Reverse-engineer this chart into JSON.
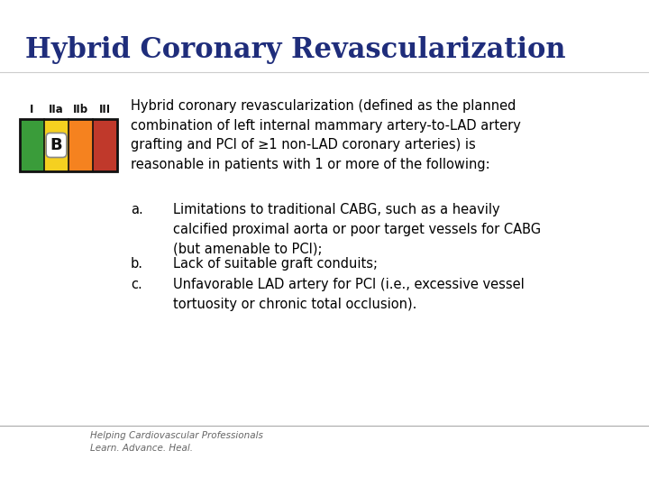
{
  "title": "Hybrid Coronary Revascularization",
  "title_color": "#1f2d7b",
  "title_fontsize": 22,
  "bg_color": "#ffffff",
  "classification_labels": [
    "I",
    "IIa",
    "IIb",
    "III"
  ],
  "bar_colors": [
    "#3a9c3a",
    "#f5d020",
    "#f5821f",
    "#c0392b"
  ],
  "bar_outline": "#111111",
  "class_label_color": "#111111",
  "class_label_fontsize": 8.5,
  "b_label": "B",
  "intro_text": "Hybrid coronary revascularization (defined as the planned\ncombination of left internal mammary artery-to-LAD artery\ngrafting and PCI of ≥1 non-LAD coronary arteries) is\nreasonable in patients with 1 or more of the following:",
  "bullet_a_label": "a.",
  "bullet_a": "Limitations to traditional CABG, such as a heavily\ncalcified proximal aorta or poor target vessels for CABG\n(but amenable to PCI);",
  "bullet_b_label": "b.",
  "bullet_b": "Lack of suitable graft conduits;",
  "bullet_c_label": "c.",
  "bullet_c": "Unfavorable LAD artery for PCI (i.e., excessive vessel\ntortuosity or chronic total occlusion).",
  "footer_text": "Helping Cardiovascular Professionals\nLearn. Advance. Heal.",
  "body_fontsize": 10.5,
  "footer_fontsize": 7.5
}
